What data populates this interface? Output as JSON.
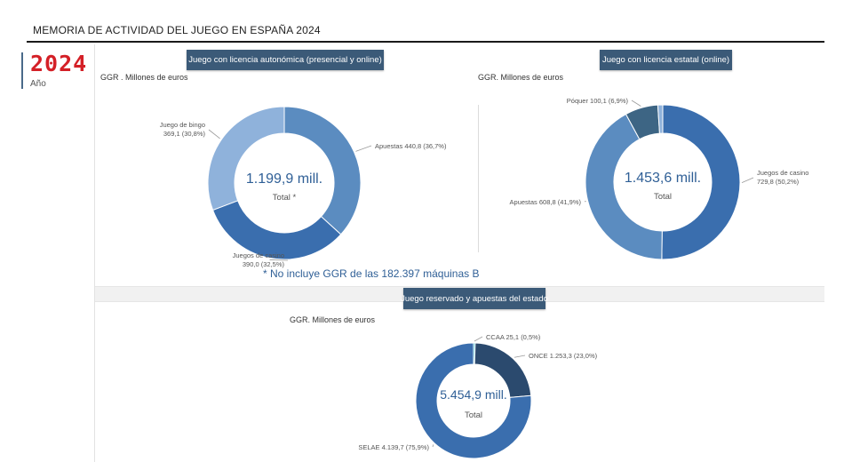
{
  "header": {
    "title": "MEMORIA DE ACTIVIDAD DEL JUEGO EN ESPAÑA 2024",
    "year_value": "2024",
    "year_label": "Año"
  },
  "sections": {
    "autonomica": {
      "button_label": "Juego con licencia autonómica (presencial y online)",
      "ggr_label": "GGR . Millones de euros"
    },
    "estatal": {
      "button_label": "Juego con licencia estatal (online)",
      "ggr_label": "GGR. Millones de euros"
    },
    "reservado": {
      "button_label": "Juego reservado y apuestas del estado",
      "ggr_label": "GGR. Millones de euros"
    }
  },
  "footnote": "* No incluye GGR de las 182.397 máquinas B",
  "chart_data": [
    {
      "type": "pie",
      "title": "GGR . Millones de euros",
      "center_value": "1.199,9 mill.",
      "center_label": "Total *",
      "slices": [
        {
          "label": "Apuestas",
          "value": 440.8,
          "value_text": "440,8",
          "percent_text": "(36,7%)",
          "color": "#5b8cc0"
        },
        {
          "label": "Juegos de casino",
          "value": 390.0,
          "value_text": "390,0",
          "percent_text": "(32,5%)",
          "color": "#3a6eae"
        },
        {
          "label": "Juego de bingo",
          "value": 369.1,
          "value_text": "369,1",
          "percent_text": "(30,8%)",
          "color": "#8fb2db"
        }
      ]
    },
    {
      "type": "pie",
      "title": "GGR. Millones de euros",
      "center_value": "1.453,6 mill.",
      "center_label": "Total",
      "slices": [
        {
          "label": "Juegos de casino",
          "value": 729.8,
          "value_text": "729,8",
          "percent_text": "(50,2%)",
          "color": "#3a6eae"
        },
        {
          "label": "Apuestas",
          "value": 608.8,
          "value_text": "608,8",
          "percent_text": "(41,9%)",
          "color": "#5b8cc0"
        },
        {
          "label": "Póquer",
          "value": 100.1,
          "value_text": "100,1",
          "percent_text": "(6,9%)",
          "color": "#3d6584"
        },
        {
          "label": "",
          "value": 14.9,
          "value_text": "",
          "percent_text": "",
          "color": "#8fb2db"
        }
      ]
    },
    {
      "type": "pie",
      "title": "GGR. Millones de euros",
      "center_value": "5.454,9 mill.",
      "center_label": "Total",
      "slices": [
        {
          "label": "CCAA",
          "value": 25.1,
          "value_text": "25,1",
          "percent_text": "(0,5%)",
          "color": "#1fb5c9"
        },
        {
          "label": "ONCE",
          "value": 1253.3,
          "value_text": "1.253,3",
          "percent_text": "(23,0%)",
          "color": "#2b4a6e"
        },
        {
          "label": "SELAE",
          "value": 4139.7,
          "value_text": "4.139,7",
          "percent_text": "(75,9%)",
          "color": "#3a6eae"
        }
      ]
    }
  ]
}
